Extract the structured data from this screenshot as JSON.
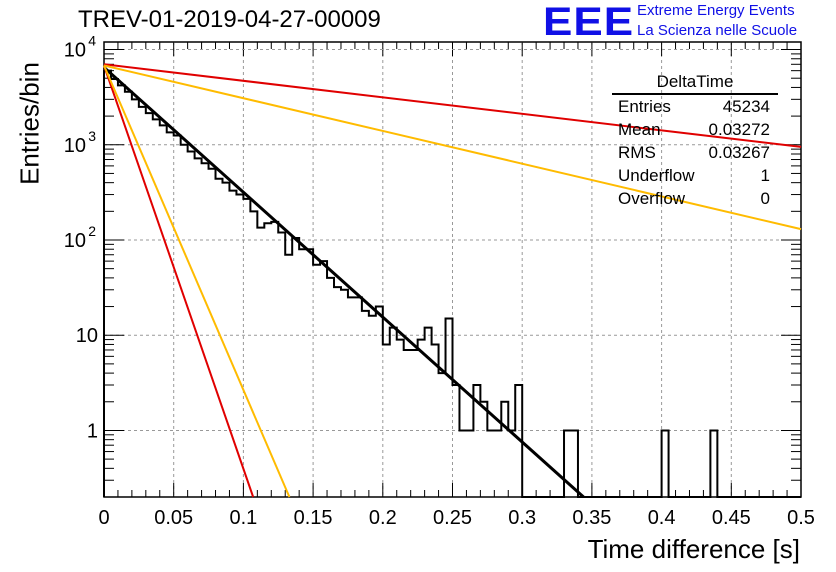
{
  "header": {
    "title": "TREV-01-2019-04-27-00009",
    "logo_text": "EEE",
    "logo_line1": "Extreme Energy Events",
    "logo_line2": "La Scienza nelle Scuole",
    "logo_color": "#1010e6"
  },
  "stats_box": {
    "title": "DeltaTime",
    "rows": [
      {
        "label": "Entries",
        "value": "45234"
      },
      {
        "label": "Mean",
        "value": "0.03272"
      },
      {
        "label": "RMS",
        "value": "0.03267"
      },
      {
        "label": "Underflow",
        "value": "1"
      },
      {
        "label": "Overflow",
        "value": "0"
      }
    ]
  },
  "chart_data": {
    "type": "line",
    "title": "TREV-01-2019-04-27-00009",
    "xlabel": "Time difference [s]",
    "ylabel": "Entries/bin",
    "xlim": [
      0,
      0.5
    ],
    "ylim": [
      0.2,
      12000
    ],
    "y_scale": "log",
    "grid": true,
    "x_ticks": [
      "0",
      "0.05",
      "0.1",
      "0.15",
      "0.2",
      "0.25",
      "0.3",
      "0.35",
      "0.4",
      "0.45",
      "0.5"
    ],
    "y_ticks": [
      {
        "value": 1,
        "label": "1"
      },
      {
        "value": 10,
        "label": "10"
      },
      {
        "value": 100,
        "label": "10",
        "exp": "2"
      },
      {
        "value": 1000,
        "label": "10",
        "exp": "3"
      },
      {
        "value": 10000,
        "label": "10",
        "exp": "4"
      }
    ],
    "histogram": {
      "bin_width": 0.005,
      "values": [
        6000,
        4900,
        4200,
        3600,
        3000,
        2500,
        2150,
        1850,
        1600,
        1350,
        1250,
        1000,
        850,
        720,
        640,
        560,
        440,
        400,
        330,
        300,
        270,
        200,
        135,
        150,
        155,
        120,
        70,
        105,
        80,
        80,
        55,
        60,
        40,
        32,
        30,
        25,
        25,
        18,
        16,
        20,
        8,
        12,
        9,
        7,
        7,
        9,
        12,
        8,
        4,
        15,
        3,
        1,
        1,
        3,
        2,
        1,
        1,
        2,
        1,
        3,
        0,
        0,
        0,
        0,
        0,
        0,
        1,
        1,
        0,
        0,
        0,
        0,
        0,
        0,
        0,
        0,
        0,
        0,
        0,
        0,
        1,
        0,
        0,
        0,
        0,
        0,
        0,
        1,
        0,
        0,
        0,
        0,
        0,
        0,
        0,
        0,
        0,
        0,
        0,
        0
      ]
    },
    "series": [
      {
        "color": "#000000",
        "x": [
          0,
          0.344
        ],
        "y": [
          6500,
          0.2
        ]
      },
      {
        "color": "#e00000",
        "x": [
          0,
          0.5
        ],
        "y": [
          7000,
          950
        ]
      },
      {
        "color": "#ffbb00",
        "x": [
          0,
          0.5
        ],
        "y": [
          6800,
          130
        ]
      },
      {
        "color": "#e00000",
        "x": [
          0,
          0.107
        ],
        "y": [
          6800,
          0.2
        ]
      },
      {
        "color": "#ffbb00",
        "x": [
          0,
          0.133
        ],
        "y": [
          6800,
          0.2
        ]
      }
    ]
  }
}
